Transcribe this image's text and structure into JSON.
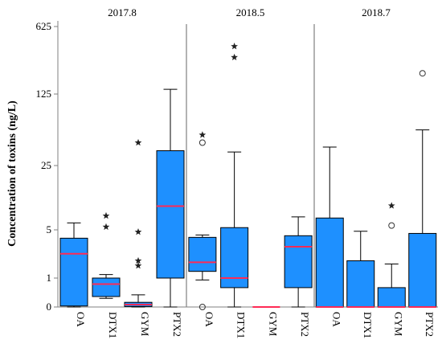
{
  "chart_data": {
    "type": "boxplot",
    "ylabel": "Concentration of toxins (ng/L)",
    "y_ticks": [
      0,
      1,
      5,
      25,
      125,
      625
    ],
    "y_tick_labels": [
      "0",
      "1",
      "5",
      "25",
      "125",
      "625"
    ],
    "panels": [
      {
        "title": "2017.8",
        "categories": [
          {
            "label": "OA",
            "whisker_low": 0,
            "q1": 0.02,
            "median": 2.4,
            "q3": 3.9,
            "whisker_high": 6.0,
            "outliers": [],
            "extremes": []
          },
          {
            "label": "DTX1",
            "whisker_low": 0.2,
            "q1": 0.25,
            "median": 0.7,
            "q3": 1.0,
            "whisker_high": 1.15,
            "outliers": [],
            "extremes": [
              5.4,
              7.2
            ]
          },
          {
            "label": "GYM",
            "whisker_low": 0,
            "q1": 0.01,
            "median": 0.05,
            "q3": 0.1,
            "whisker_high": 0.3,
            "outliers": [],
            "extremes": [
              1.6,
              1.9,
              4.7,
              42
            ]
          },
          {
            "label": "PTX2",
            "whisker_low": 0,
            "q1": 1.0,
            "median": 9.2,
            "q3": 35.0,
            "whisker_high": 140.0,
            "outliers": [],
            "extremes": []
          }
        ]
      },
      {
        "title": "2018.5",
        "categories": [
          {
            "label": "OA",
            "whisker_low": 0.9,
            "q1": 1.3,
            "median": 1.8,
            "q3": 4.0,
            "whisker_high": 4.3,
            "outliers": [
              0,
              42
            ],
            "extremes": [
              50
            ]
          },
          {
            "label": "DTX1",
            "whisker_low": 0,
            "q1": 0.55,
            "median": 1.0,
            "q3": 5.3,
            "whisker_high": 34.0,
            "outliers": [],
            "extremes": [
              300,
              390
            ]
          },
          {
            "label": "GYM",
            "whisker_low": 0,
            "q1": 0,
            "median": 0,
            "q3": 0,
            "whisker_high": 0,
            "outliers": [],
            "extremes": []
          },
          {
            "label": "PTX2",
            "whisker_low": 0,
            "q1": 0.55,
            "median": 3.0,
            "q3": 4.2,
            "whisker_high": 7.0,
            "outliers": [],
            "extremes": []
          }
        ]
      },
      {
        "title": "2018.7",
        "categories": [
          {
            "label": "OA",
            "whisker_low": 0,
            "q1": 0,
            "median": 0,
            "q3": 6.8,
            "whisker_high": 38.0,
            "outliers": [],
            "extremes": []
          },
          {
            "label": "DTX1",
            "whisker_low": 0,
            "q1": 0,
            "median": 0,
            "q3": 1.9,
            "whisker_high": 4.8,
            "outliers": [],
            "extremes": []
          },
          {
            "label": "GYM",
            "whisker_low": 0,
            "q1": 0,
            "median": 0,
            "q3": 0.55,
            "whisker_high": 1.7,
            "outliers": [
              5.6
            ],
            "extremes": [
              9.3
            ]
          },
          {
            "label": "PTX2",
            "whisker_low": 0,
            "q1": 0,
            "median": 0,
            "q3": 4.5,
            "whisker_high": 56.0,
            "outliers": [
              205
            ],
            "extremes": []
          }
        ]
      }
    ],
    "colors": {
      "box_fill": "#1e90ff",
      "median": "#ff2a55",
      "axis": "#808080",
      "stroke": "#000000"
    }
  }
}
